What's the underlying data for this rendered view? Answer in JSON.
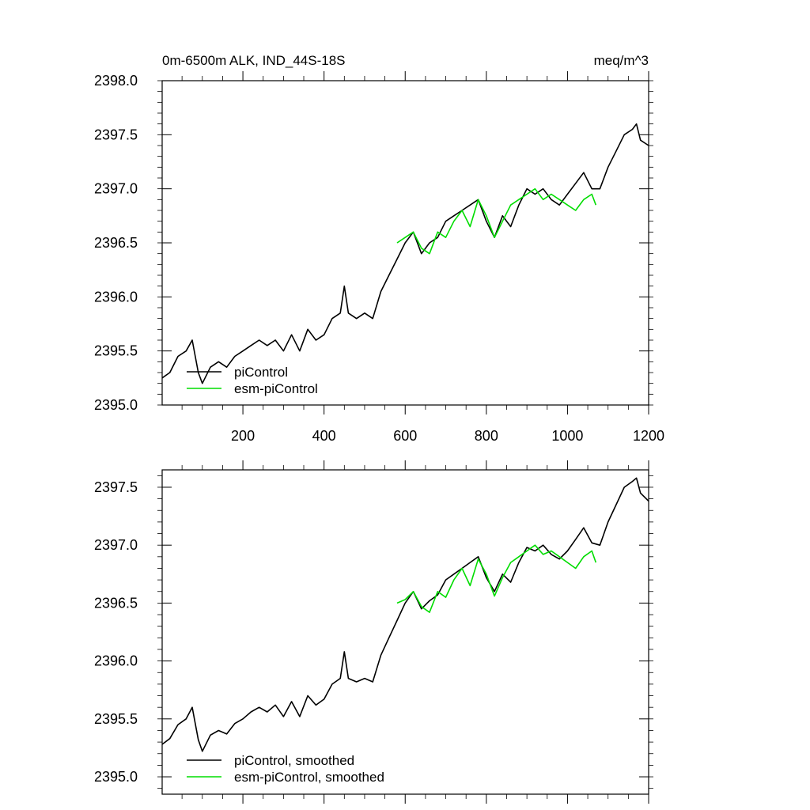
{
  "chart_data": [
    {
      "type": "line",
      "title_left": "0m-6500m ALK, IND_44S-18S",
      "title_right": "meq/m^3",
      "xlim": [
        1,
        1200
      ],
      "ylim": [
        2395.0,
        2398.0
      ],
      "x_ticks": [
        200,
        400,
        600,
        800,
        1000,
        1200
      ],
      "x_tick_labels": [
        "200",
        "400",
        "600",
        "800",
        "1000",
        "1200"
      ],
      "y_ticks": [
        2395.0,
        2395.5,
        2396.0,
        2396.5,
        2397.0,
        2397.5,
        2398.0
      ],
      "y_tick_labels": [
        "2395.0",
        "2395.5",
        "2396.0",
        "2396.5",
        "2397.0",
        "2397.5",
        "2398.0"
      ],
      "legend_position": "bottom-left",
      "series": [
        {
          "name": "piControl",
          "color": "#000000",
          "x": [
            1,
            20,
            40,
            60,
            75,
            90,
            100,
            120,
            140,
            160,
            180,
            200,
            220,
            240,
            260,
            280,
            300,
            320,
            340,
            360,
            380,
            400,
            420,
            440,
            450,
            460,
            480,
            500,
            520,
            540,
            560,
            580,
            600,
            620,
            640,
            660,
            680,
            700,
            720,
            740,
            760,
            780,
            800,
            820,
            840,
            860,
            880,
            900,
            920,
            940,
            960,
            980,
            1000,
            1020,
            1040,
            1060,
            1080,
            1100,
            1120,
            1140,
            1160,
            1170,
            1180,
            1200
          ],
          "y": [
            2395.25,
            2395.3,
            2395.45,
            2395.5,
            2395.6,
            2395.3,
            2395.2,
            2395.35,
            2395.4,
            2395.35,
            2395.45,
            2395.5,
            2395.55,
            2395.6,
            2395.55,
            2395.6,
            2395.5,
            2395.65,
            2395.5,
            2395.7,
            2395.6,
            2395.65,
            2395.8,
            2395.85,
            2396.1,
            2395.85,
            2395.8,
            2395.85,
            2395.8,
            2396.05,
            2396.2,
            2396.35,
            2396.5,
            2396.6,
            2396.4,
            2396.5,
            2396.55,
            2396.7,
            2396.75,
            2396.8,
            2396.85,
            2396.9,
            2396.7,
            2396.55,
            2396.75,
            2396.65,
            2396.85,
            2397.0,
            2396.95,
            2397.0,
            2396.9,
            2396.85,
            2396.95,
            2397.05,
            2397.15,
            2397.0,
            2397.0,
            2397.2,
            2397.35,
            2397.5,
            2397.55,
            2397.6,
            2397.45,
            2397.4
          ]
        },
        {
          "name": "esm-piControl",
          "color": "#00dd00",
          "x": [
            580,
            600,
            620,
            640,
            660,
            680,
            700,
            720,
            740,
            760,
            780,
            800,
            820,
            840,
            860,
            880,
            900,
            920,
            940,
            960,
            980,
            1000,
            1020,
            1040,
            1060,
            1070
          ],
          "y": [
            2396.5,
            2396.55,
            2396.6,
            2396.45,
            2396.4,
            2396.6,
            2396.55,
            2396.7,
            2396.8,
            2396.65,
            2396.9,
            2396.75,
            2396.55,
            2396.7,
            2396.85,
            2396.9,
            2396.95,
            2397.0,
            2396.9,
            2396.95,
            2396.9,
            2396.85,
            2396.8,
            2396.9,
            2396.95,
            2396.85
          ]
        }
      ]
    },
    {
      "type": "line",
      "xlim": [
        1,
        1200
      ],
      "ylim": [
        2394.85,
        2397.65
      ],
      "x_ticks": [
        200,
        400,
        600,
        800,
        1000,
        1200
      ],
      "y_ticks": [
        2395.0,
        2395.5,
        2396.0,
        2396.5,
        2397.0,
        2397.5
      ],
      "y_tick_labels": [
        "2395.0",
        "2395.5",
        "2396.0",
        "2396.5",
        "2397.0",
        "2397.5"
      ],
      "legend_position": "bottom-left",
      "series": [
        {
          "name": "piControl, smoothed",
          "color": "#000000",
          "x": [
            1,
            20,
            40,
            60,
            75,
            90,
            100,
            120,
            140,
            160,
            180,
            200,
            220,
            240,
            260,
            280,
            300,
            320,
            340,
            360,
            380,
            400,
            420,
            440,
            450,
            460,
            480,
            500,
            520,
            540,
            560,
            580,
            600,
            620,
            640,
            660,
            680,
            700,
            720,
            740,
            760,
            780,
            800,
            820,
            840,
            860,
            880,
            900,
            920,
            940,
            960,
            980,
            1000,
            1020,
            1040,
            1060,
            1080,
            1100,
            1120,
            1140,
            1160,
            1170,
            1180,
            1200
          ],
          "y": [
            2395.28,
            2395.33,
            2395.45,
            2395.5,
            2395.6,
            2395.32,
            2395.22,
            2395.36,
            2395.4,
            2395.37,
            2395.46,
            2395.5,
            2395.56,
            2395.6,
            2395.56,
            2395.62,
            2395.52,
            2395.65,
            2395.52,
            2395.7,
            2395.62,
            2395.67,
            2395.8,
            2395.85,
            2396.08,
            2395.85,
            2395.82,
            2395.85,
            2395.82,
            2396.05,
            2396.2,
            2396.35,
            2396.5,
            2396.6,
            2396.45,
            2396.52,
            2396.57,
            2396.7,
            2396.75,
            2396.8,
            2396.85,
            2396.9,
            2396.72,
            2396.6,
            2396.75,
            2396.68,
            2396.85,
            2396.98,
            2396.95,
            2397.0,
            2396.92,
            2396.88,
            2396.95,
            2397.05,
            2397.15,
            2397.02,
            2397.0,
            2397.2,
            2397.35,
            2397.5,
            2397.55,
            2397.58,
            2397.45,
            2397.38
          ]
        },
        {
          "name": "esm-piControl, smoothed",
          "color": "#00dd00",
          "x": [
            580,
            600,
            620,
            640,
            660,
            680,
            700,
            720,
            740,
            760,
            780,
            800,
            820,
            840,
            860,
            880,
            900,
            920,
            940,
            960,
            980,
            1000,
            1020,
            1040,
            1060,
            1070
          ],
          "y": [
            2396.5,
            2396.53,
            2396.6,
            2396.47,
            2396.42,
            2396.6,
            2396.55,
            2396.7,
            2396.8,
            2396.65,
            2396.88,
            2396.75,
            2396.56,
            2396.72,
            2396.85,
            2396.9,
            2396.95,
            2397.0,
            2396.92,
            2396.95,
            2396.9,
            2396.85,
            2396.8,
            2396.9,
            2396.95,
            2396.85
          ]
        }
      ]
    }
  ]
}
